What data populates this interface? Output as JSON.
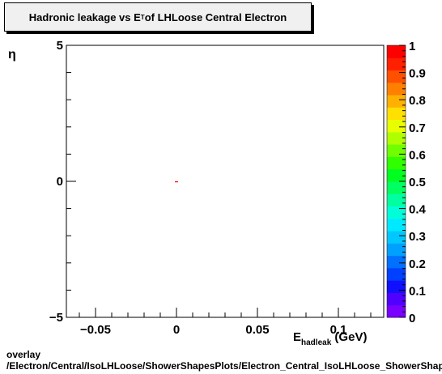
{
  "chart_data": {
    "type": "heatmap",
    "title_main": "Hadronic leakage vs E",
    "title_sub": "T",
    "title_rest": " of LHLoose Central  Electron",
    "xlabel_main": "E",
    "xlabel_sub": "hadleak",
    "xlabel_unit": " (GeV)",
    "ylabel": "η",
    "xlim": [
      -0.068,
      0.128
    ],
    "ylim": [
      -5,
      5
    ],
    "x_ticks": [
      {
        "v": -0.05,
        "label": "−0.05"
      },
      {
        "v": 0,
        "label": "0"
      },
      {
        "v": 0.05,
        "label": "0.05"
      },
      {
        "v": 0.1,
        "label": "0.1"
      }
    ],
    "y_ticks": [
      {
        "v": 5,
        "label": "5"
      },
      {
        "v": 0,
        "label": "0"
      },
      {
        "v": -5,
        "label": "−5"
      }
    ],
    "z_range": [
      0,
      1
    ],
    "z_ticks": [
      "0",
      "0.1",
      "0.2",
      "0.3",
      "0.4",
      "0.5",
      "0.6",
      "0.7",
      "0.8",
      "0.9",
      "1"
    ],
    "palette": [
      "#7a00ff",
      "#5000ff",
      "#1010ff",
      "#0040ff",
      "#0070ff",
      "#00a0ff",
      "#00c8ff",
      "#00eaff",
      "#00ffd8",
      "#00ffa0",
      "#00ff60",
      "#00ff20",
      "#30ff00",
      "#70ff00",
      "#b0ff00",
      "#e8ff00",
      "#ffe000",
      "#ffb000",
      "#ff8000",
      "#ff5000",
      "#ff2000",
      "#ff0000"
    ],
    "cells": [
      {
        "x": 0,
        "y": 0,
        "z": 0.98
      }
    ]
  },
  "footer": {
    "line1": "overlay",
    "line2": "/Electron/Central/IsoLHLoose/ShowerShapesPlots/Electron_Central_IsoLHLoose_ShowerShapesPlots"
  }
}
